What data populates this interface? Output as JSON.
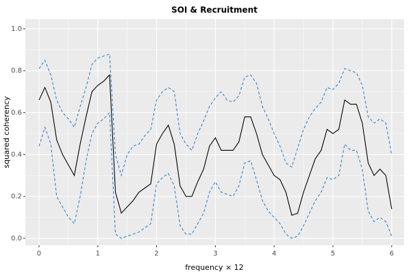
{
  "chart_data": {
    "type": "line",
    "title": "SOI & Recruitment",
    "x_label": "frequency × 12",
    "y_label": "squared coherency",
    "x": [
      0,
      0.1,
      0.2,
      0.3,
      0.4,
      0.5,
      0.6,
      0.7,
      0.8,
      0.9,
      1,
      1.1,
      1.2,
      1.3,
      1.4,
      1.5,
      1.6,
      1.7,
      1.8,
      1.9,
      2,
      2.1,
      2.2,
      2.3,
      2.4,
      2.5,
      2.6,
      2.7,
      2.8,
      2.9,
      3,
      3.1,
      3.2,
      3.3,
      3.4,
      3.5,
      3.6,
      3.7,
      3.8,
      3.9,
      4,
      4.1,
      4.2,
      4.3,
      4.4,
      4.5,
      4.6,
      4.7,
      4.8,
      4.9,
      5,
      5.1,
      5.2,
      5.3,
      5.4,
      5.5,
      5.6,
      5.7,
      5.8,
      5.9,
      6
    ],
    "series": [
      {
        "color": "#000000",
        "dashed": false,
        "values": [
          0.66,
          0.72,
          0.65,
          0.47,
          0.4,
          0.35,
          0.3,
          0.45,
          0.58,
          0.7,
          0.73,
          0.75,
          0.78,
          0.22,
          0.12,
          0.15,
          0.18,
          0.22,
          0.24,
          0.26,
          0.45,
          0.5,
          0.54,
          0.45,
          0.25,
          0.2,
          0.2,
          0.27,
          0.33,
          0.44,
          0.48,
          0.42,
          0.42,
          0.42,
          0.46,
          0.58,
          0.58,
          0.5,
          0.4,
          0.35,
          0.3,
          0.28,
          0.22,
          0.11,
          0.12,
          0.22,
          0.3,
          0.38,
          0.42,
          0.52,
          0.5,
          0.52,
          0.66,
          0.64,
          0.64,
          0.55,
          0.36,
          0.3,
          0.33,
          0.3,
          0.14
        ]
      },
      {
        "color": "#1f78c8",
        "dashed": true,
        "values": [
          0.81,
          0.85,
          0.78,
          0.66,
          0.6,
          0.57,
          0.53,
          0.63,
          0.72,
          0.83,
          0.86,
          0.87,
          0.88,
          0.4,
          0.3,
          0.4,
          0.44,
          0.45,
          0.49,
          0.52,
          0.66,
          0.7,
          0.72,
          0.7,
          0.5,
          0.45,
          0.42,
          0.5,
          0.56,
          0.63,
          0.67,
          0.7,
          0.66,
          0.65,
          0.68,
          0.77,
          0.78,
          0.74,
          0.63,
          0.57,
          0.5,
          0.44,
          0.36,
          0.34,
          0.43,
          0.52,
          0.58,
          0.62,
          0.65,
          0.72,
          0.71,
          0.74,
          0.81,
          0.8,
          0.79,
          0.73,
          0.58,
          0.55,
          0.57,
          0.55,
          0.4
        ]
      },
      {
        "color": "#1f78c8",
        "dashed": true,
        "values": [
          0.44,
          0.53,
          0.45,
          0.2,
          0.15,
          0.1,
          0.07,
          0.2,
          0.37,
          0.5,
          0.55,
          0.57,
          0.6,
          0.02,
          0.0,
          0.01,
          0.02,
          0.03,
          0.05,
          0.07,
          0.26,
          0.29,
          0.31,
          0.25,
          0.06,
          0.02,
          0.02,
          0.07,
          0.12,
          0.22,
          0.27,
          0.22,
          0.21,
          0.2,
          0.25,
          0.36,
          0.37,
          0.28,
          0.18,
          0.13,
          0.1,
          0.07,
          0.02,
          0.0,
          0.01,
          0.06,
          0.12,
          0.18,
          0.22,
          0.29,
          0.28,
          0.3,
          0.45,
          0.42,
          0.42,
          0.33,
          0.13,
          0.08,
          0.1,
          0.08,
          0.01
        ]
      }
    ],
    "xlim": [
      -0.233,
      6.212
    ],
    "ylim": [
      -0.033,
      1.046
    ],
    "xticks": [
      0,
      1,
      2,
      3,
      4,
      5,
      6
    ],
    "yticks": [
      {
        "value": 0,
        "label": "0.0"
      },
      0.2,
      0.4,
      0.6,
      0.8,
      {
        "value": 1,
        "label": "1.0"
      }
    ],
    "grid": true
  }
}
